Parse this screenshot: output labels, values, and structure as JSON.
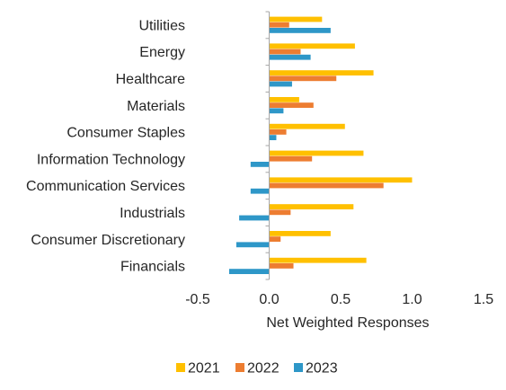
{
  "chart_data": {
    "type": "bar",
    "orientation": "horizontal",
    "categories": [
      "Utilities",
      "Energy",
      "Healthcare",
      "Materials",
      "Consumer Staples",
      "Information Technology",
      "Communication Services",
      "Industrials",
      "Consumer Discretionary",
      "Financials"
    ],
    "series": [
      {
        "name": "2021",
        "color": "#FFC000",
        "values": [
          0.37,
          0.6,
          0.73,
          0.21,
          0.53,
          0.66,
          1.0,
          0.59,
          0.43,
          0.68
        ]
      },
      {
        "name": "2022",
        "color": "#ED7D31",
        "values": [
          0.14,
          0.22,
          0.47,
          0.31,
          0.12,
          0.3,
          0.8,
          0.15,
          0.08,
          0.17
        ]
      },
      {
        "name": "2023",
        "color": "#2E97C8",
        "values": [
          0.43,
          0.29,
          0.16,
          0.1,
          0.05,
          -0.13,
          -0.13,
          -0.21,
          -0.23,
          -0.28
        ]
      }
    ],
    "xlabel": "Net Weighted Responses",
    "ylabel": "",
    "title": "",
    "xlim": [
      -0.5,
      1.5
    ],
    "xticks": [
      -0.5,
      0.0,
      0.5,
      1.0,
      1.5
    ],
    "xtick_labels": [
      "-0.5",
      "0.0",
      "0.5",
      "1.0",
      "1.5"
    ],
    "grid": false,
    "legend_position": "bottom"
  }
}
